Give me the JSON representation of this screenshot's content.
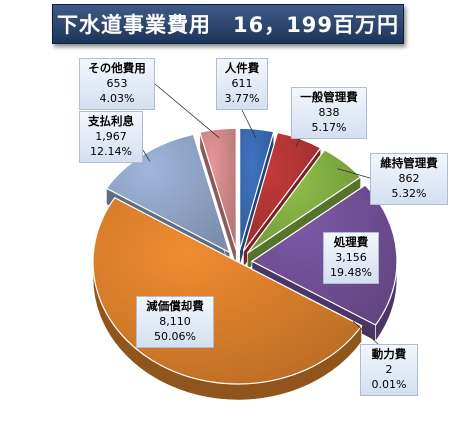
{
  "title": "下水道事業費用　16，199百万円",
  "chart_data": {
    "type": "pie",
    "title": "下水道事業費用　16，199百万円",
    "slices": [
      {
        "label": "人件費",
        "value": 611,
        "percent": "3.77%",
        "color": "#3f73c2",
        "exploded": true
      },
      {
        "label": "一般管理費",
        "value": 838,
        "percent": "5.17%",
        "color": "#c53a3a",
        "exploded": true
      },
      {
        "label": "維持管理費",
        "value": 862,
        "percent": "5.32%",
        "color": "#8fc04a",
        "exploded": true
      },
      {
        "label": "処理費",
        "value": 3156,
        "percent": "19.48%",
        "color": "#7d58a6",
        "exploded": true
      },
      {
        "label": "動力費",
        "value": 2,
        "percent": "0.01%",
        "color": "#3fb7cf",
        "exploded": false
      },
      {
        "label": "減価償却費",
        "value": 8110,
        "percent": "50.06%",
        "color": "#f08c30",
        "exploded": false
      },
      {
        "label": "支払利息",
        "value": 1967,
        "percent": "12.14%",
        "color": "#9fb6dc",
        "exploded": true
      },
      {
        "label": "その他費用",
        "value": 653,
        "percent": "4.03%",
        "color": "#e79696",
        "exploded": true
      }
    ],
    "labels": [
      {
        "category": "人件費",
        "value": "611",
        "percent": "3.77%"
      },
      {
        "category": "一般管理費",
        "value": "838",
        "percent": "5.17%"
      },
      {
        "category": "維持管理費",
        "value": "862",
        "percent": "5.32%"
      },
      {
        "category": "処理費",
        "value": "3,156",
        "percent": "19.48%"
      },
      {
        "category": "動力費",
        "value": "2",
        "percent": "0.01%"
      },
      {
        "category": "減価償却費",
        "value": "8,110",
        "percent": "50.06%"
      },
      {
        "category": "支払利息",
        "value": "1,967",
        "percent": "12.14%"
      },
      {
        "category": "その他費用",
        "value": "653",
        "percent": "4.03%"
      }
    ]
  }
}
